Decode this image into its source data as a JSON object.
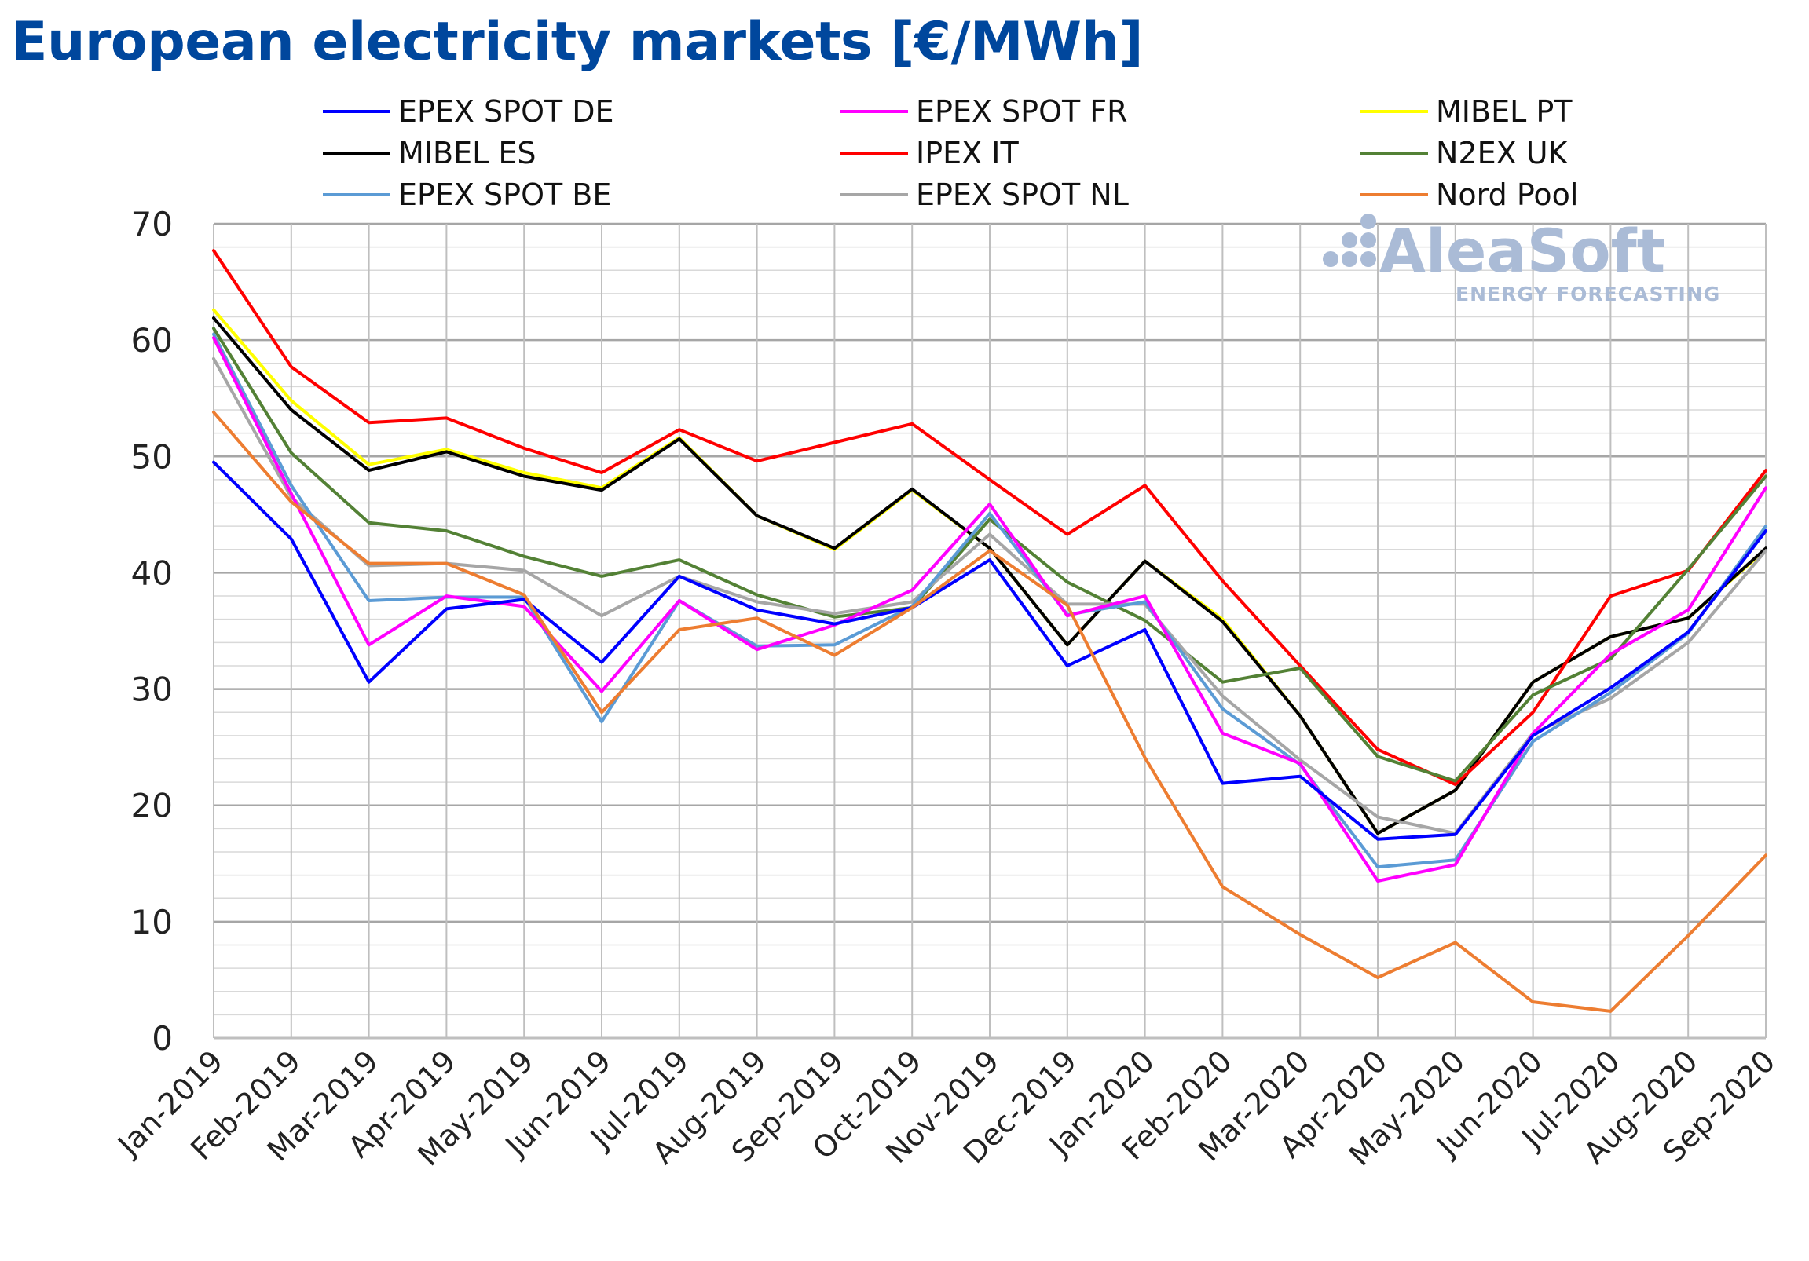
{
  "title": "European electricity markets [€/MWh]",
  "logo": {
    "name": "AleaSoft",
    "tagline": "ENERGY FORECASTING"
  },
  "chart_data": {
    "type": "line",
    "ylim": [
      0,
      70
    ],
    "yticks": [
      "0",
      "10",
      "20",
      "30",
      "40",
      "50",
      "60",
      "70"
    ],
    "grid": true,
    "legend_position": "top",
    "categories": [
      "Jan-2019",
      "Feb-2019",
      "Mar-2019",
      "Apr-2019",
      "May-2019",
      "Jun-2019",
      "Jul-2019",
      "Aug-2019",
      "Sep-2019",
      "Oct-2019",
      "Nov-2019",
      "Dec-2019",
      "Jan-2020",
      "Feb-2020",
      "Mar-2020",
      "Apr-2020",
      "May-2020",
      "Jun-2020",
      "Jul-2020",
      "Aug-2020",
      "Sep-2020"
    ],
    "series": [
      {
        "name": "MIBEL PT",
        "color": "#ffff00",
        "values": [
          62.6,
          54.8,
          49.3,
          50.6,
          48.6,
          47.3,
          51.6,
          44.9,
          42.0,
          47.1,
          42.1,
          33.8,
          41.0,
          36.0,
          27.7,
          17.6,
          21.3,
          30.6,
          34.5,
          36.1,
          42.0
        ]
      },
      {
        "name": "MIBEL ES",
        "color": "#000000",
        "values": [
          61.9,
          54.0,
          48.8,
          50.4,
          48.3,
          47.1,
          51.5,
          44.9,
          42.1,
          47.2,
          42.1,
          33.8,
          41.0,
          35.8,
          27.7,
          17.6,
          21.3,
          30.6,
          34.5,
          36.1,
          42.1
        ]
      },
      {
        "name": "IPEX IT",
        "color": "#ff0000",
        "values": [
          67.7,
          57.7,
          52.9,
          53.3,
          50.7,
          48.6,
          52.3,
          49.6,
          51.2,
          52.8,
          48.0,
          43.3,
          47.5,
          39.3,
          32.0,
          24.8,
          21.8,
          28.0,
          38.0,
          40.2,
          48.8
        ]
      },
      {
        "name": "N2EX UK",
        "color": "#538135",
        "values": [
          61.0,
          50.3,
          44.3,
          43.6,
          41.4,
          39.7,
          41.1,
          38.1,
          36.2,
          37.0,
          44.6,
          39.2,
          35.9,
          30.6,
          31.8,
          24.2,
          22.1,
          29.5,
          32.6,
          40.3,
          48.3
        ]
      },
      {
        "name": "EPEX SPOT NL",
        "color": "#a6a6a6",
        "values": [
          58.4,
          46.5,
          40.6,
          40.8,
          40.2,
          36.3,
          39.7,
          37.5,
          36.5,
          37.5,
          43.3,
          37.3,
          37.3,
          29.4,
          23.9,
          19.0,
          17.6,
          26.2,
          29.2,
          34.0,
          41.9
        ]
      },
      {
        "name": "EPEX SPOT BE",
        "color": "#5b9bd5",
        "values": [
          60.5,
          47.5,
          37.6,
          37.9,
          37.9,
          27.2,
          37.6,
          33.7,
          33.8,
          37.1,
          45.1,
          36.4,
          37.5,
          28.3,
          23.5,
          14.7,
          15.3,
          25.5,
          29.7,
          34.8,
          44.0
        ]
      },
      {
        "name": "EPEX SPOT FR",
        "color": "#ff00ff",
        "values": [
          60.2,
          46.8,
          33.8,
          38.0,
          37.1,
          29.8,
          37.6,
          33.4,
          35.5,
          38.5,
          45.9,
          36.3,
          38.0,
          26.2,
          23.6,
          13.5,
          14.9,
          26.2,
          33.0,
          36.8,
          47.3
        ]
      },
      {
        "name": "EPEX SPOT DE",
        "color": "#0000ff",
        "values": [
          49.5,
          42.9,
          30.6,
          36.9,
          37.7,
          32.3,
          39.7,
          36.8,
          35.6,
          37.0,
          41.1,
          32.0,
          35.1,
          21.9,
          22.5,
          17.1,
          17.5,
          26.0,
          30.1,
          34.9,
          43.6
        ]
      },
      {
        "name": "Nord Pool",
        "color": "#ed7d31",
        "values": [
          53.8,
          46.1,
          40.8,
          40.8,
          38.1,
          28.0,
          35.1,
          36.1,
          32.9,
          37.0,
          41.9,
          37.2,
          24.1,
          13.0,
          8.9,
          5.2,
          8.2,
          3.1,
          2.3,
          8.8,
          15.7
        ]
      }
    ],
    "legend": [
      [
        "EPEX SPOT DE",
        "EPEX SPOT FR",
        "MIBEL PT"
      ],
      [
        "MIBEL ES",
        "IPEX IT",
        "N2EX UK"
      ],
      [
        "EPEX SPOT BE",
        "EPEX SPOT NL",
        "Nord Pool"
      ]
    ]
  }
}
